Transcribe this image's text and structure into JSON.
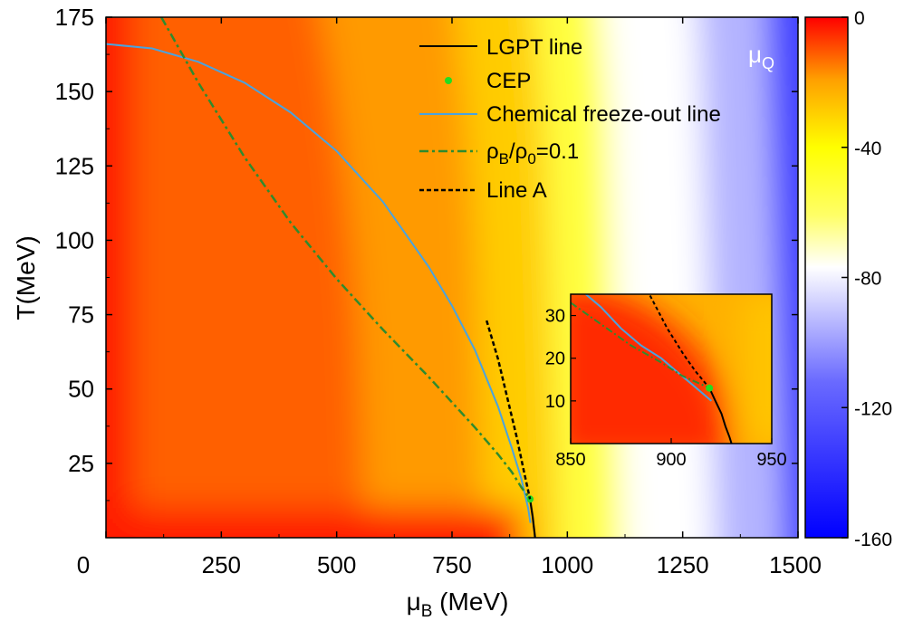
{
  "chart_data": [
    {
      "type": "heatmap",
      "title": "",
      "xlabel_main": "μ",
      "xlabel_sub": "B",
      "xlabel_unit": " (MeV)",
      "ylabel": "T(MeV)",
      "xlim": [
        0,
        1500
      ],
      "ylim": [
        0,
        175
      ],
      "x_ticks": [
        0,
        250,
        500,
        750,
        1000,
        1250,
        1500
      ],
      "x_tick_labels": [
        "0",
        "250",
        "500",
        "750",
        "1000",
        "1250",
        "1500"
      ],
      "y_ticks": [
        25,
        50,
        75,
        100,
        125,
        150,
        175
      ],
      "y_tick_labels": [
        "25",
        "50",
        "75",
        "100",
        "125",
        "150",
        "175"
      ],
      "colorbar": {
        "label_main": "μ",
        "label_sub": "Q",
        "range": [
          -160,
          0
        ],
        "ticks": [
          0,
          -40,
          -80,
          -120,
          -160
        ],
        "tick_labels": [
          "0",
          "-40",
          "-80",
          "-120",
          "-160"
        ],
        "colors": {
          "max": "#ff0000",
          "upper": "#ffa500",
          "middle_high": "#ffff00",
          "middle": "#ffffff",
          "low": "#0000ff"
        }
      },
      "series": [
        {
          "name": "LGPT line",
          "style": "solid",
          "color": "#000000",
          "x": [
            919,
            922,
            925,
            927,
            929,
            930
          ],
          "y": [
            13,
            10,
            7,
            4,
            1.5,
            0
          ]
        },
        {
          "name": "CEP",
          "style": "marker",
          "color": "#22dd22",
          "x": [
            919
          ],
          "y": [
            13
          ]
        },
        {
          "name": "Chemical freeze-out line",
          "style": "solid",
          "color": "#4aa3df",
          "x": [
            0,
            100,
            200,
            300,
            400,
            500,
            600,
            700,
            750,
            800,
            850,
            880,
            900,
            915,
            920
          ],
          "y": [
            166,
            164.5,
            160,
            153,
            143,
            130,
            113,
            91,
            78,
            63,
            44,
            30,
            20,
            10,
            5
          ]
        },
        {
          "name": "ρB/ρ0=0.1",
          "style": "dashdot",
          "color": "#2e8b2e",
          "x": [
            120,
            200,
            300,
            400,
            500,
            600,
            700,
            800,
            850,
            880,
            900,
            919
          ],
          "y": [
            175,
            153,
            128,
            106,
            87,
            70,
            54,
            37,
            28,
            22,
            17,
            13
          ]
        },
        {
          "name": "Line A",
          "style": "dashed",
          "color": "#000000",
          "x": [
            825,
            850,
            870,
            890,
            905,
            919
          ],
          "y": [
            73,
            60,
            47,
            34,
            23,
            13
          ]
        }
      ],
      "legend": {
        "position": "top-right",
        "entries": [
          {
            "label": "LGPT line"
          },
          {
            "label": "CEP"
          },
          {
            "label": "Chemical freeze-out line"
          },
          {
            "label_main": "ρ",
            "label_sub1": "B",
            "label_mid": "/ρ",
            "label_sub2": "0",
            "label_end": "=0.1"
          },
          {
            "label": "Line A"
          }
        ]
      },
      "inset": {
        "xlim": [
          850,
          950
        ],
        "ylim": [
          0,
          35
        ],
        "x_ticks": [
          850,
          900,
          950
        ],
        "x_tick_labels": [
          "850",
          "900",
          "950"
        ],
        "y_ticks": [
          10,
          20,
          30
        ],
        "y_tick_labels": [
          "10",
          "20",
          "30"
        ]
      }
    }
  ]
}
